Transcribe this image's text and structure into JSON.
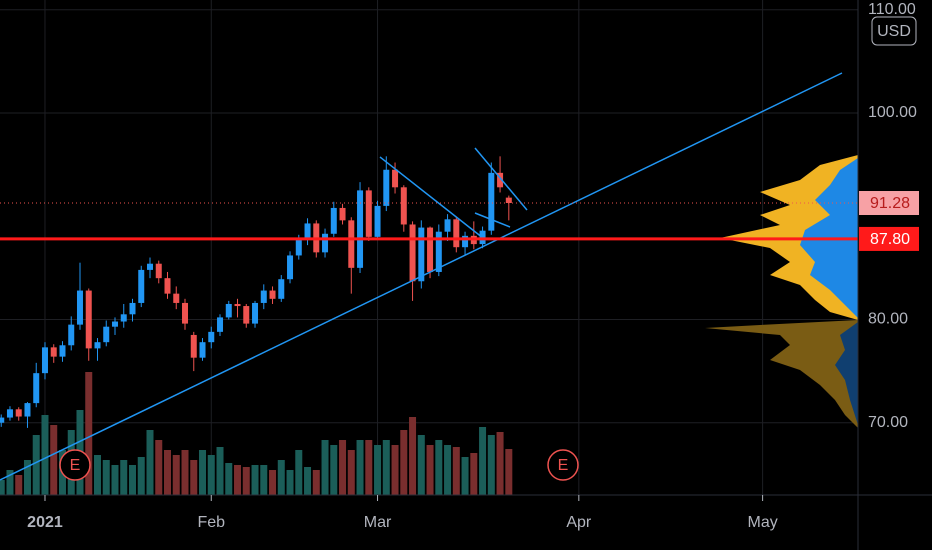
{
  "chart_data": {
    "type": "candlestick",
    "x": [
      -5,
      -4,
      -3,
      -2,
      -1,
      0,
      1,
      2,
      3,
      4,
      5,
      6,
      7,
      8,
      9,
      10,
      11,
      12,
      13,
      14,
      15,
      16,
      17,
      18,
      19,
      20,
      21,
      22,
      23,
      24,
      25,
      26,
      27,
      28,
      29,
      30,
      31,
      32,
      33,
      34,
      35,
      36,
      37,
      38,
      39,
      40,
      41,
      42,
      43,
      44,
      45,
      46,
      47,
      48,
      49,
      50,
      51,
      52,
      53
    ],
    "open": [
      70.0,
      70.5,
      71.3,
      70.6,
      71.9,
      74.8,
      77.3,
      76.4,
      77.5,
      79.5,
      82.8,
      77.2,
      77.8,
      79.3,
      79.8,
      80.5,
      81.6,
      84.8,
      85.4,
      84.0,
      82.5,
      81.6,
      78.5,
      76.3,
      77.8,
      78.8,
      80.2,
      81.5,
      81.3,
      79.6,
      81.6,
      82.8,
      82.0,
      83.9,
      86.2,
      87.8,
      89.3,
      86.5,
      88.3,
      90.8,
      89.6,
      85.0,
      92.5,
      88.0,
      91.0,
      94.5,
      92.8,
      89.2,
      83.7,
      88.9,
      84.6,
      88.5,
      89.7,
      87.0,
      88.1,
      87.3,
      88.6,
      94.2,
      91.8
    ],
    "high": [
      70.8,
      71.6,
      71.5,
      72.0,
      75.8,
      77.8,
      77.6,
      77.9,
      80.3,
      85.5,
      83.0,
      78.2,
      79.9,
      80.2,
      81.5,
      82.0,
      85.2,
      86.0,
      85.7,
      84.6,
      83.2,
      82.0,
      78.8,
      78.2,
      79.3,
      80.5,
      81.8,
      82.0,
      81.5,
      81.8,
      83.4,
      83.2,
      84.3,
      86.6,
      88.2,
      89.8,
      89.6,
      88.8,
      91.4,
      91.2,
      89.9,
      93.3,
      92.8,
      91.5,
      95.8,
      95.2,
      93.0,
      89.5,
      89.6,
      89.0,
      89.2,
      90.2,
      89.9,
      88.5,
      89.5,
      89.0,
      95.2,
      95.8,
      92.0
    ],
    "low": [
      69.6,
      70.2,
      70.2,
      69.5,
      71.5,
      74.2,
      75.8,
      75.9,
      77.0,
      79.0,
      76.0,
      76.0,
      77.4,
      78.5,
      79.2,
      79.8,
      81.2,
      84.0,
      83.5,
      82.0,
      81.0,
      79.0,
      75.0,
      76.0,
      77.2,
      78.4,
      80.0,
      80.2,
      79.2,
      79.2,
      81.0,
      81.5,
      81.7,
      83.5,
      85.8,
      87.2,
      86.0,
      86.0,
      88.0,
      89.2,
      82.5,
      84.5,
      87.6,
      87.8,
      90.5,
      92.2,
      88.5,
      81.8,
      83.0,
      84.0,
      84.2,
      87.6,
      86.5,
      86.2,
      86.8,
      86.9,
      88.2,
      92.3,
      89.6
    ],
    "close": [
      70.5,
      71.3,
      70.6,
      71.9,
      74.8,
      77.3,
      76.4,
      77.5,
      79.5,
      82.8,
      77.2,
      77.8,
      79.3,
      79.8,
      80.5,
      81.6,
      84.8,
      85.4,
      84.0,
      82.5,
      81.6,
      79.6,
      76.3,
      77.8,
      78.8,
      80.2,
      81.5,
      81.3,
      79.6,
      81.6,
      82.8,
      82.0,
      83.9,
      86.2,
      87.8,
      89.3,
      86.5,
      88.3,
      90.8,
      89.6,
      85.0,
      92.5,
      88.0,
      91.0,
      94.5,
      92.8,
      89.2,
      83.7,
      88.9,
      84.6,
      88.5,
      89.7,
      87.0,
      88.1,
      87.3,
      88.6,
      94.2,
      92.8,
      91.28
    ],
    "volume": [
      1.5,
      2.5,
      2.0,
      3.5,
      6.0,
      8.0,
      7.0,
      4.5,
      6.5,
      8.5,
      12.3,
      4.0,
      3.5,
      3.0,
      3.5,
      3.0,
      3.8,
      6.5,
      5.5,
      4.5,
      4.0,
      4.5,
      3.5,
      4.5,
      4.0,
      4.8,
      3.2,
      3.0,
      2.8,
      3.0,
      3.0,
      2.5,
      3.5,
      2.5,
      4.5,
      2.8,
      2.5,
      5.5,
      5.0,
      5.5,
      4.5,
      5.5,
      5.5,
      5.0,
      5.5,
      5.0,
      6.5,
      7.8,
      6.0,
      5.0,
      5.5,
      5.0,
      4.8,
      3.8,
      4.2,
      6.8,
      6.0,
      6.3,
      4.6
    ],
    "up_color": "#2196f3",
    "down_color": "#ef5350",
    "volume_up_color": "#1b5e59",
    "volume_down_color": "#7a2e2e",
    "xlim": [
      -5.14,
      92.9
    ],
    "ylim": [
      63.0,
      110.94
    ],
    "xticks": [
      {
        "value": 0,
        "label": "2021"
      },
      {
        "value": 19,
        "label": "Feb"
      },
      {
        "value": 38,
        "label": "Mar"
      },
      {
        "value": 61,
        "label": "Apr"
      },
      {
        "value": 82,
        "label": "May"
      }
    ],
    "yticks": [
      {
        "value": 70,
        "label": "70.00"
      },
      {
        "value": 80,
        "label": "80.00"
      },
      {
        "value": 100,
        "label": "100.00"
      },
      {
        "value": 110,
        "label": "110.00"
      }
    ],
    "grid": true,
    "currency": "USD",
    "last_price": {
      "value": 91.28,
      "label": "91.28"
    },
    "level_line": {
      "value": 87.8,
      "label": "87.80"
    },
    "earnings_labels": [
      "E",
      "E"
    ]
  }
}
